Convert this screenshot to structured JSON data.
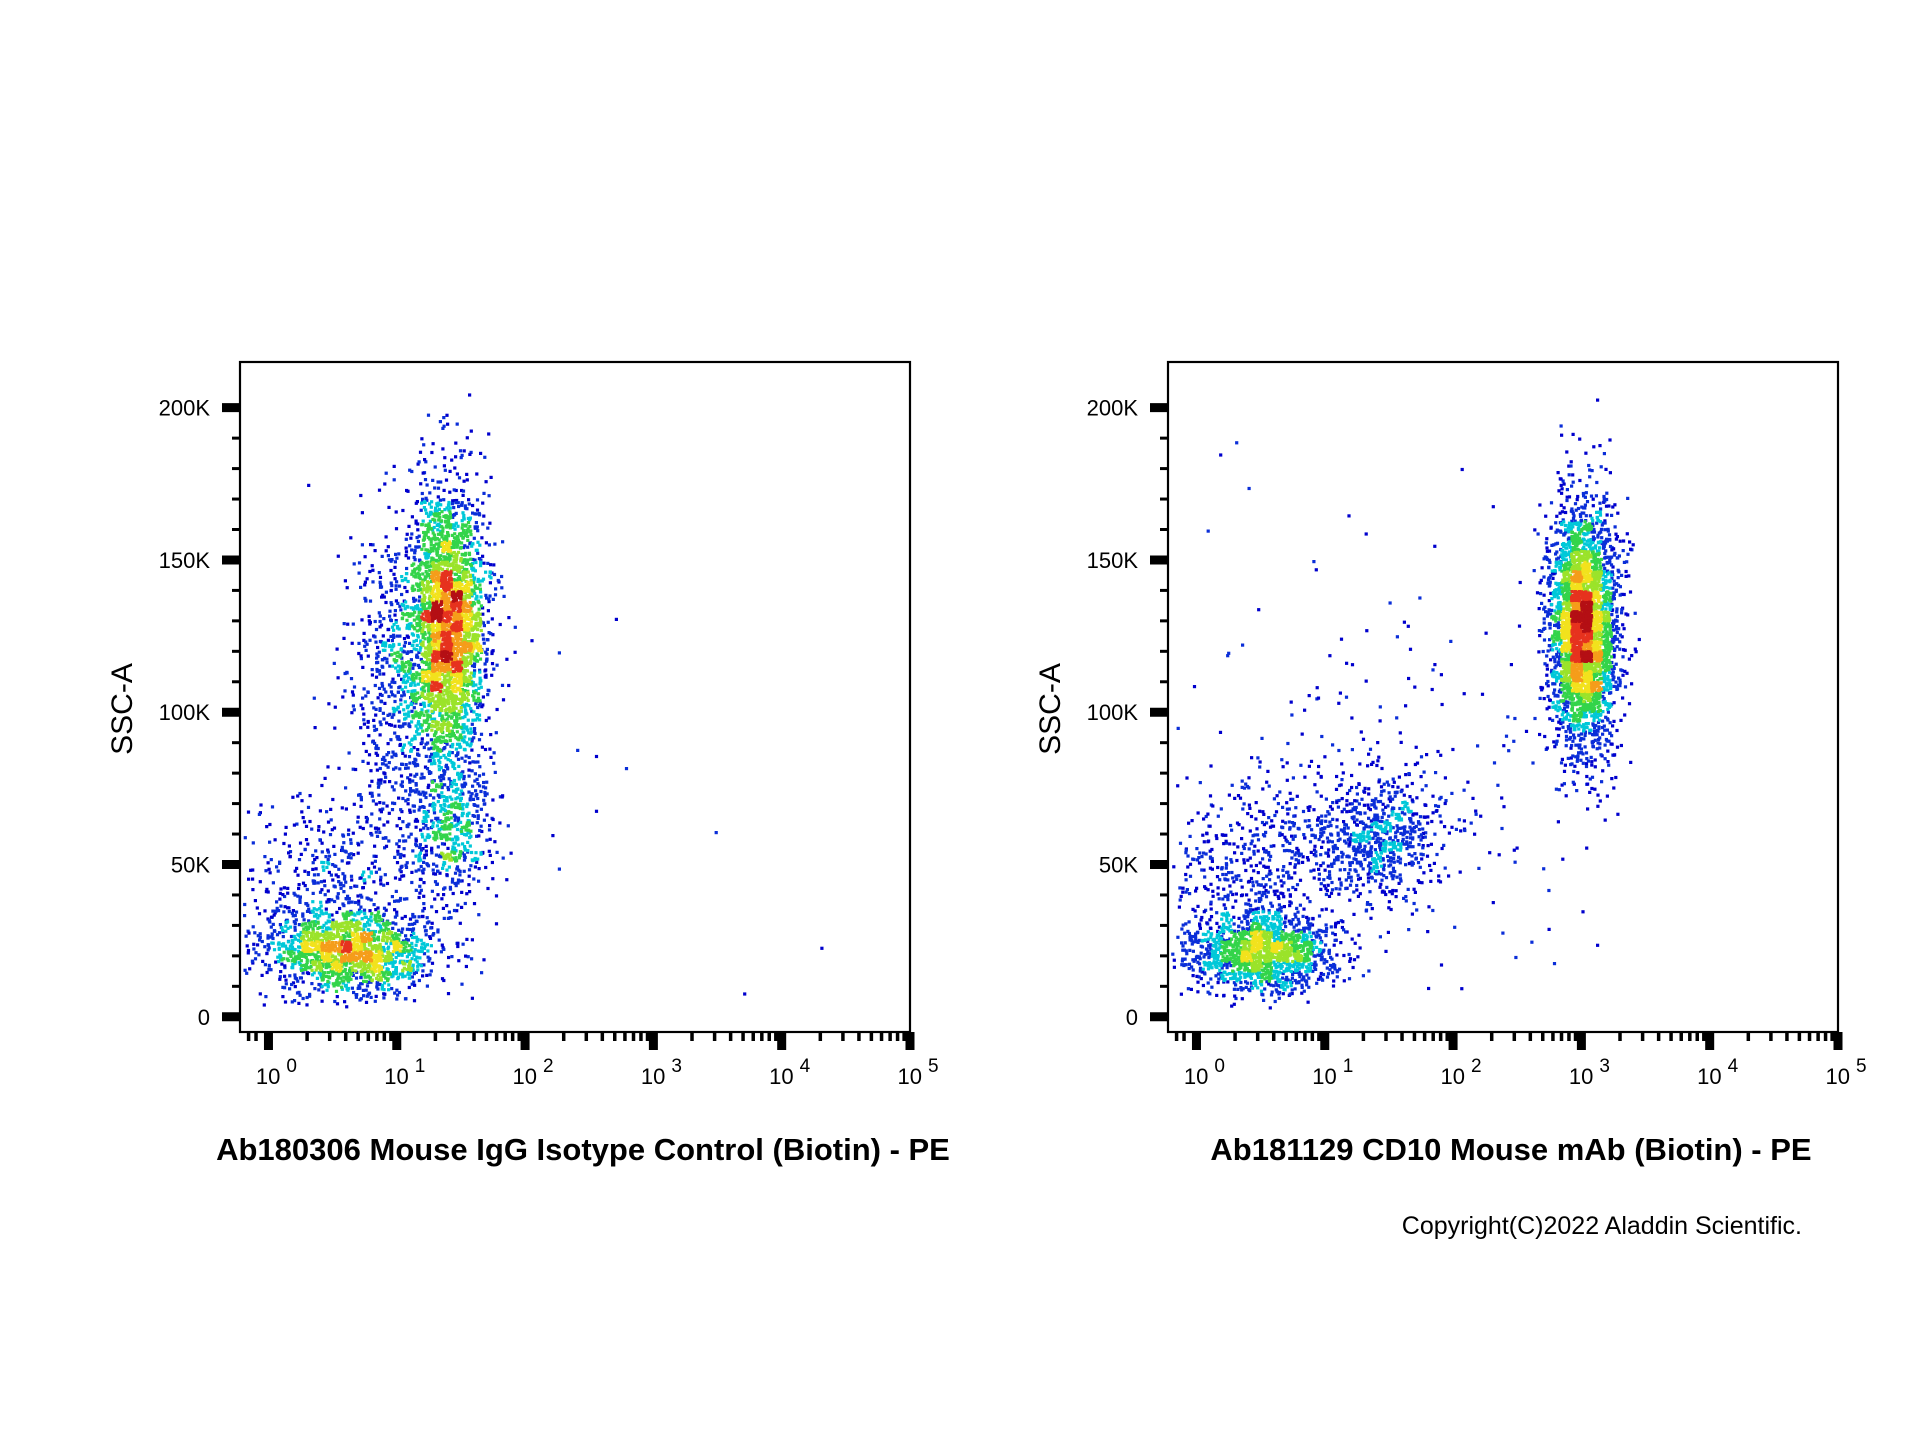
{
  "chart_data": [
    {
      "type": "scatter",
      "title": "",
      "xlabel": "Ab180306 Mouse IgG Isotype Control (Biotin) - PE",
      "ylabel": "SSC-A",
      "x_scale": "log",
      "xlim": [
        0.6,
        100000
      ],
      "ylim": [
        -5000,
        215000
      ],
      "x_ticks": [
        1,
        10,
        100,
        1000,
        10000,
        100000
      ],
      "x_tick_labels": [
        {
          "base": "10",
          "exp": "0"
        },
        {
          "base": "10",
          "exp": "1"
        },
        {
          "base": "10",
          "exp": "2"
        },
        {
          "base": "10",
          "exp": "3"
        },
        {
          "base": "10",
          "exp": "4"
        },
        {
          "base": "10",
          "exp": "5"
        }
      ],
      "y_ticks": [
        0,
        50000,
        100000,
        150000,
        200000
      ],
      "y_tick_labels": [
        "0",
        "50K",
        "100K",
        "150K",
        "200K"
      ],
      "grid": false,
      "legend": "none",
      "color_scale": [
        "#0000cd",
        "#0a2ed8",
        "#00c8d8",
        "#33d44a",
        "#9be32a",
        "#f2e21d",
        "#f59d1a",
        "#e6321e",
        "#b40f14"
      ],
      "clusters": [
        {
          "x_center": 25,
          "y_center": 130000,
          "x_spread_log": 0.15,
          "y_spread": 22000,
          "count": 2600
        },
        {
          "x_center": 12,
          "y_center": 110000,
          "x_spread_log": 0.25,
          "y_spread": 25000,
          "count": 900
        },
        {
          "x_center": 25,
          "y_center": 62000,
          "x_spread_log": 0.18,
          "y_spread": 12000,
          "count": 500
        },
        {
          "x_center": 4,
          "y_center": 22000,
          "x_spread_log": 0.35,
          "y_spread": 7000,
          "count": 1500
        },
        {
          "x_center": 3,
          "y_center": 45000,
          "x_spread_log": 0.4,
          "y_spread": 15000,
          "count": 450
        }
      ],
      "outliers": [
        {
          "x": 2,
          "y": 175000
        },
        {
          "x": 110,
          "y": 124000
        },
        {
          "x": 180,
          "y": 120000
        },
        {
          "x": 500,
          "y": 131000
        },
        {
          "x": 250,
          "y": 88000
        },
        {
          "x": 350,
          "y": 86000
        },
        {
          "x": 600,
          "y": 82000
        },
        {
          "x": 350,
          "y": 68000
        },
        {
          "x": 3000,
          "y": 61000
        },
        {
          "x": 160,
          "y": 60000
        },
        {
          "x": 180,
          "y": 49000
        },
        {
          "x": 20000,
          "y": 23000
        },
        {
          "x": 5000,
          "y": 8000
        }
      ]
    },
    {
      "type": "scatter",
      "title": "",
      "xlabel": "Ab181129 CD10 Mouse mAb (Biotin) - PE",
      "ylabel": "SSC-A",
      "x_scale": "log",
      "xlim": [
        0.6,
        100000
      ],
      "ylim": [
        -5000,
        215000
      ],
      "x_ticks": [
        1,
        10,
        100,
        1000,
        10000,
        100000
      ],
      "x_tick_labels": [
        {
          "base": "10",
          "exp": "0"
        },
        {
          "base": "10",
          "exp": "1"
        },
        {
          "base": "10",
          "exp": "2"
        },
        {
          "base": "10",
          "exp": "3"
        },
        {
          "base": "10",
          "exp": "4"
        },
        {
          "base": "10",
          "exp": "5"
        }
      ],
      "y_ticks": [
        0,
        50000,
        100000,
        150000,
        200000
      ],
      "y_tick_labels": [
        "0",
        "50K",
        "100K",
        "150K",
        "200K"
      ],
      "grid": false,
      "legend": "none",
      "color_scale": [
        "#0000cd",
        "#0a2ed8",
        "#00c8d8",
        "#33d44a",
        "#9be32a",
        "#f2e21d",
        "#f59d1a",
        "#e6321e",
        "#b40f14"
      ],
      "clusters": [
        {
          "x_center": 1000,
          "y_center": 128000,
          "x_spread_log": 0.13,
          "y_spread": 20000,
          "count": 3300
        },
        {
          "x_center": 3,
          "y_center": 22000,
          "x_spread_log": 0.3,
          "y_spread": 6500,
          "count": 1400
        },
        {
          "x_center": 25,
          "y_center": 60000,
          "x_spread_log": 0.25,
          "y_spread": 10000,
          "count": 650
        },
        {
          "x_center": 3,
          "y_center": 48000,
          "x_spread_log": 0.35,
          "y_spread": 15000,
          "count": 500
        },
        {
          "x_center": 30,
          "y_center": 75000,
          "x_spread_log": 0.7,
          "y_spread": 35000,
          "count": 220
        }
      ],
      "outliers": [
        {
          "x": 1.5,
          "y": 185000
        },
        {
          "x": 2,
          "y": 189000
        },
        {
          "x": 2.5,
          "y": 174000
        },
        {
          "x": 1.2,
          "y": 160000
        },
        {
          "x": 15,
          "y": 165000
        },
        {
          "x": 8,
          "y": 150000
        },
        {
          "x": 70,
          "y": 155000
        },
        {
          "x": 200,
          "y": 168000
        },
        {
          "x": 1300,
          "y": 203000
        },
        {
          "x": 400,
          "y": 25000
        },
        {
          "x": 300,
          "y": 20000
        },
        {
          "x": 600,
          "y": 18000
        },
        {
          "x": 1000,
          "y": 35000
        },
        {
          "x": 1300,
          "y": 24000
        },
        {
          "x": 200,
          "y": 38000
        }
      ]
    }
  ],
  "footer": {
    "copyright": "Copyright(C)2022 Aladdin Scientific."
  }
}
